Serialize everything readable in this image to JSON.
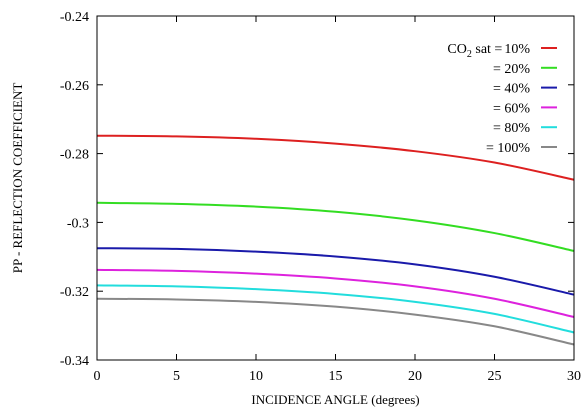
{
  "chart_data": {
    "type": "line",
    "title": "",
    "xlabel": "INCIDENCE ANGLE (degrees)",
    "ylabel": "PP - REFLECTION COEFFICIENT",
    "xlim": [
      0,
      30
    ],
    "ylim": [
      -0.34,
      -0.24
    ],
    "xticks": [
      0,
      5,
      10,
      15,
      20,
      25,
      30
    ],
    "xtick_labels": [
      "0",
      "5",
      "10",
      "15",
      "20",
      "25",
      "30"
    ],
    "yticks": [
      -0.34,
      -0.32,
      -0.3,
      -0.28,
      -0.26,
      -0.24
    ],
    "ytick_labels": [
      "-0.34",
      "-0.32",
      "-0.3",
      "-0.28",
      "-0.26",
      "-0.24"
    ],
    "grid": false,
    "legend_position": "top-right",
    "legend_prefix": "CO",
    "legend_prefix_sub": "2",
    "legend_prefix_tail": " sat = ",
    "x": [
      0,
      5,
      10,
      15,
      20,
      25,
      30
    ],
    "series": [
      {
        "name": "10%",
        "label": "10%",
        "color": "#dd2020",
        "values": [
          -0.2748,
          -0.275,
          -0.2757,
          -0.2771,
          -0.2793,
          -0.2826,
          -0.2876
        ]
      },
      {
        "name": "20%",
        "label": "= 20%",
        "color": "#33dd22",
        "values": [
          -0.2943,
          -0.2946,
          -0.2954,
          -0.2969,
          -0.2994,
          -0.3031,
          -0.3083
        ]
      },
      {
        "name": "40%",
        "label": "= 40%",
        "color": "#1a1aaa",
        "values": [
          -0.3075,
          -0.3077,
          -0.3085,
          -0.3099,
          -0.3122,
          -0.3158,
          -0.321
        ]
      },
      {
        "name": "60%",
        "label": "= 60%",
        "color": "#dd22dd",
        "values": [
          -0.3138,
          -0.3141,
          -0.3149,
          -0.3163,
          -0.3186,
          -0.3222,
          -0.3275
        ]
      },
      {
        "name": "80%",
        "label": "= 80%",
        "color": "#22dddd",
        "values": [
          -0.3183,
          -0.3186,
          -0.3194,
          -0.3208,
          -0.3231,
          -0.3266,
          -0.332
        ]
      },
      {
        "name": "100%",
        "label": "= 100%",
        "color": "#888888",
        "values": [
          -0.3222,
          -0.3224,
          -0.3231,
          -0.3245,
          -0.3268,
          -0.3302,
          -0.3355
        ]
      }
    ]
  }
}
